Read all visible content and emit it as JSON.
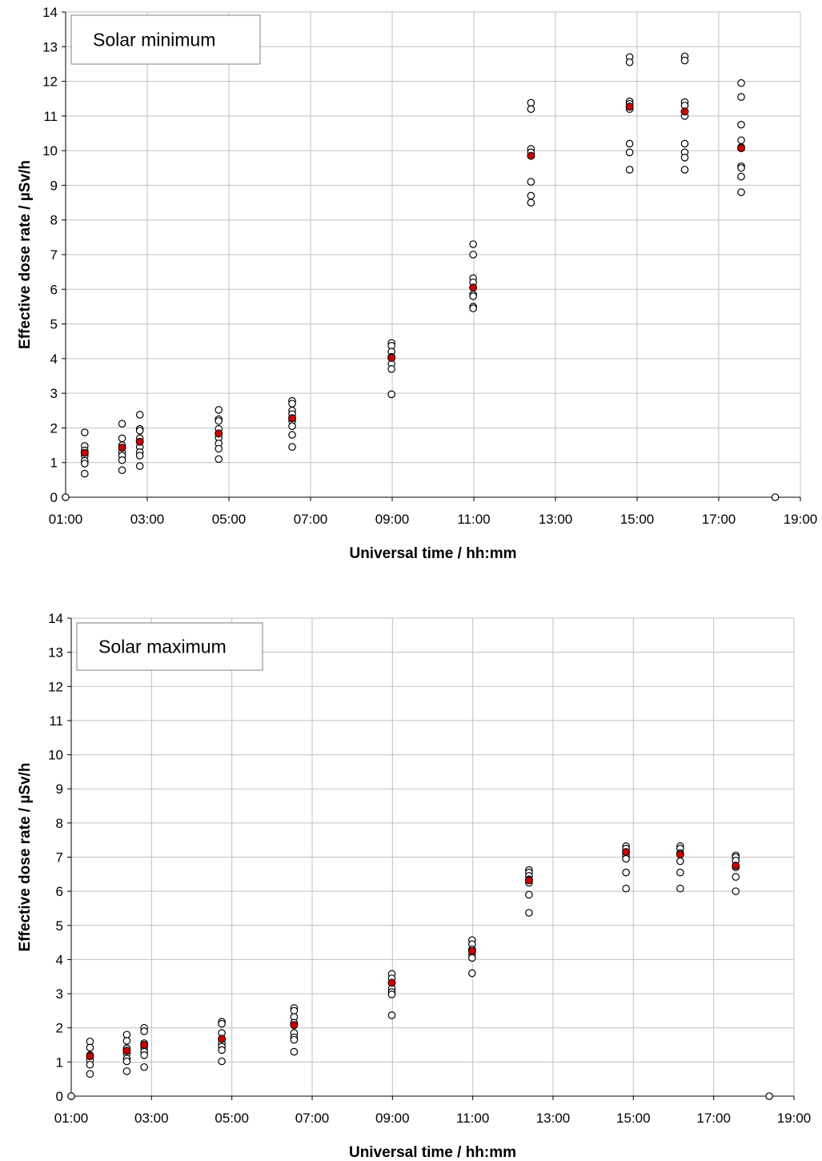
{
  "chart_data": [
    {
      "type": "scatter",
      "panel_label": "Solar minimum",
      "xlabel": "Universal time / hh:mm",
      "ylabel": "Effective dose rate / µSv/h",
      "x_ticks": [
        "01:00",
        "03:00",
        "05:00",
        "07:00",
        "09:00",
        "11:00",
        "13:00",
        "15:00",
        "17:00",
        "19:00"
      ],
      "xlim": [
        "01:00",
        "19:00"
      ],
      "ylim": [
        0,
        14
      ],
      "y_ticks": [
        0,
        1,
        2,
        3,
        4,
        5,
        6,
        7,
        8,
        9,
        10,
        11,
        12,
        13,
        14
      ],
      "grid": true,
      "colors": {
        "individual": "#000000",
        "mean": "#cc0000"
      },
      "series": [
        {
          "marker": "open-circle",
          "points": [
            {
              "x": "01:00",
              "y": 0
            },
            {
              "x": "01:28",
              "y": 1.87
            },
            {
              "x": "01:28",
              "y": 1.48
            },
            {
              "x": "01:28",
              "y": 1.35
            },
            {
              "x": "01:28",
              "y": 1.2
            },
            {
              "x": "01:28",
              "y": 1.05
            },
            {
              "x": "01:28",
              "y": 0.97
            },
            {
              "x": "01:28",
              "y": 0.68
            },
            {
              "x": "02:23",
              "y": 2.12
            },
            {
              "x": "02:23",
              "y": 1.7
            },
            {
              "x": "02:23",
              "y": 1.5
            },
            {
              "x": "02:23",
              "y": 1.3
            },
            {
              "x": "02:23",
              "y": 1.2
            },
            {
              "x": "02:23",
              "y": 1.07
            },
            {
              "x": "02:23",
              "y": 0.78
            },
            {
              "x": "02:49",
              "y": 2.38
            },
            {
              "x": "02:49",
              "y": 1.97
            },
            {
              "x": "02:49",
              "y": 1.92
            },
            {
              "x": "02:49",
              "y": 1.7
            },
            {
              "x": "02:49",
              "y": 1.45
            },
            {
              "x": "02:49",
              "y": 1.3
            },
            {
              "x": "02:49",
              "y": 1.2
            },
            {
              "x": "02:49",
              "y": 0.9
            },
            {
              "x": "04:45",
              "y": 2.52
            },
            {
              "x": "04:45",
              "y": 2.25
            },
            {
              "x": "04:45",
              "y": 2.2
            },
            {
              "x": "04:45",
              "y": 1.97
            },
            {
              "x": "04:45",
              "y": 1.72
            },
            {
              "x": "04:45",
              "y": 1.55
            },
            {
              "x": "04:45",
              "y": 1.4
            },
            {
              "x": "04:45",
              "y": 1.1
            },
            {
              "x": "06:33",
              "y": 2.78
            },
            {
              "x": "06:33",
              "y": 2.7
            },
            {
              "x": "06:33",
              "y": 2.5
            },
            {
              "x": "06:33",
              "y": 2.4
            },
            {
              "x": "06:33",
              "y": 2.2
            },
            {
              "x": "06:33",
              "y": 2.05
            },
            {
              "x": "06:33",
              "y": 1.8
            },
            {
              "x": "06:33",
              "y": 1.45
            },
            {
              "x": "08:59",
              "y": 4.45
            },
            {
              "x": "08:59",
              "y": 4.37
            },
            {
              "x": "08:59",
              "y": 4.2
            },
            {
              "x": "08:59",
              "y": 4.05
            },
            {
              "x": "08:59",
              "y": 3.85
            },
            {
              "x": "08:59",
              "y": 3.7
            },
            {
              "x": "08:59",
              "y": 2.97
            },
            {
              "x": "10:59",
              "y": 7.3
            },
            {
              "x": "10:59",
              "y": 7.0
            },
            {
              "x": "10:59",
              "y": 6.32
            },
            {
              "x": "10:59",
              "y": 6.2
            },
            {
              "x": "10:59",
              "y": 5.85
            },
            {
              "x": "10:59",
              "y": 5.8
            },
            {
              "x": "10:59",
              "y": 5.5
            },
            {
              "x": "10:59",
              "y": 5.45
            },
            {
              "x": "12:24",
              "y": 11.38
            },
            {
              "x": "12:24",
              "y": 11.2
            },
            {
              "x": "12:24",
              "y": 10.05
            },
            {
              "x": "12:24",
              "y": 9.95
            },
            {
              "x": "12:24",
              "y": 9.1
            },
            {
              "x": "12:24",
              "y": 8.7
            },
            {
              "x": "12:24",
              "y": 8.5
            },
            {
              "x": "14:49",
              "y": 12.7
            },
            {
              "x": "14:49",
              "y": 12.55
            },
            {
              "x": "14:49",
              "y": 11.42
            },
            {
              "x": "14:49",
              "y": 11.35
            },
            {
              "x": "14:49",
              "y": 11.2
            },
            {
              "x": "14:49",
              "y": 10.2
            },
            {
              "x": "14:49",
              "y": 9.95
            },
            {
              "x": "14:49",
              "y": 9.45
            },
            {
              "x": "16:10",
              "y": 12.72
            },
            {
              "x": "16:10",
              "y": 12.6
            },
            {
              "x": "16:10",
              "y": 11.4
            },
            {
              "x": "16:10",
              "y": 11.3
            },
            {
              "x": "16:10",
              "y": 11.0
            },
            {
              "x": "16:10",
              "y": 10.2
            },
            {
              "x": "16:10",
              "y": 9.95
            },
            {
              "x": "16:10",
              "y": 9.8
            },
            {
              "x": "16:10",
              "y": 9.45
            },
            {
              "x": "17:33",
              "y": 11.95
            },
            {
              "x": "17:33",
              "y": 11.55
            },
            {
              "x": "17:33",
              "y": 10.75
            },
            {
              "x": "17:33",
              "y": 10.3
            },
            {
              "x": "17:33",
              "y": 10.1
            },
            {
              "x": "17:33",
              "y": 9.55
            },
            {
              "x": "17:33",
              "y": 9.5
            },
            {
              "x": "17:33",
              "y": 9.25
            },
            {
              "x": "17:33",
              "y": 8.8
            },
            {
              "x": "18:23",
              "y": 0
            }
          ]
        },
        {
          "marker": "filled-circle",
          "points": [
            {
              "x": "01:28",
              "y": 1.28
            },
            {
              "x": "02:23",
              "y": 1.43
            },
            {
              "x": "02:49",
              "y": 1.6
            },
            {
              "x": "04:45",
              "y": 1.84
            },
            {
              "x": "06:33",
              "y": 2.28
            },
            {
              "x": "08:59",
              "y": 4.02
            },
            {
              "x": "10:59",
              "y": 6.05
            },
            {
              "x": "12:24",
              "y": 9.85
            },
            {
              "x": "14:49",
              "y": 11.27
            },
            {
              "x": "16:10",
              "y": 11.13
            },
            {
              "x": "17:33",
              "y": 10.07
            }
          ]
        }
      ]
    },
    {
      "type": "scatter",
      "panel_label": "Solar maximum",
      "xlabel": "Universal time / hh:mm",
      "ylabel": "Effective dose rate / µSv/h",
      "x_ticks": [
        "01:00",
        "03:00",
        "05:00",
        "07:00",
        "09:00",
        "11:00",
        "13:00",
        "15:00",
        "17:00",
        "19:00"
      ],
      "xlim": [
        "01:00",
        "19:00"
      ],
      "ylim": [
        0,
        14
      ],
      "y_ticks": [
        0,
        1,
        2,
        3,
        4,
        5,
        6,
        7,
        8,
        9,
        10,
        11,
        12,
        13,
        14
      ],
      "grid": true,
      "colors": {
        "individual": "#000000",
        "mean": "#cc0000"
      },
      "series": [
        {
          "marker": "open-circle",
          "points": [
            {
              "x": "01:00",
              "y": 0
            },
            {
              "x": "01:28",
              "y": 1.6
            },
            {
              "x": "01:28",
              "y": 1.42
            },
            {
              "x": "01:28",
              "y": 1.2
            },
            {
              "x": "01:28",
              "y": 1.05
            },
            {
              "x": "01:28",
              "y": 0.92
            },
            {
              "x": "01:28",
              "y": 0.65
            },
            {
              "x": "02:23",
              "y": 1.8
            },
            {
              "x": "02:23",
              "y": 1.62
            },
            {
              "x": "02:23",
              "y": 1.4
            },
            {
              "x": "02:23",
              "y": 1.25
            },
            {
              "x": "02:23",
              "y": 1.1
            },
            {
              "x": "02:23",
              "y": 1.02
            },
            {
              "x": "02:23",
              "y": 0.73
            },
            {
              "x": "02:49",
              "y": 2.0
            },
            {
              "x": "02:49",
              "y": 1.9
            },
            {
              "x": "02:49",
              "y": 1.55
            },
            {
              "x": "02:49",
              "y": 1.4
            },
            {
              "x": "02:49",
              "y": 1.3
            },
            {
              "x": "02:49",
              "y": 1.2
            },
            {
              "x": "02:49",
              "y": 0.85
            },
            {
              "x": "04:45",
              "y": 2.18
            },
            {
              "x": "04:45",
              "y": 2.12
            },
            {
              "x": "04:45",
              "y": 1.85
            },
            {
              "x": "04:45",
              "y": 1.55
            },
            {
              "x": "04:45",
              "y": 1.45
            },
            {
              "x": "04:45",
              "y": 1.35
            },
            {
              "x": "04:45",
              "y": 1.02
            },
            {
              "x": "06:33",
              "y": 2.58
            },
            {
              "x": "06:33",
              "y": 2.5
            },
            {
              "x": "06:33",
              "y": 2.32
            },
            {
              "x": "06:33",
              "y": 2.15
            },
            {
              "x": "06:33",
              "y": 1.85
            },
            {
              "x": "06:33",
              "y": 1.72
            },
            {
              "x": "06:33",
              "y": 1.65
            },
            {
              "x": "06:33",
              "y": 1.3
            },
            {
              "x": "08:59",
              "y": 3.58
            },
            {
              "x": "08:59",
              "y": 3.45
            },
            {
              "x": "08:59",
              "y": 3.15
            },
            {
              "x": "08:59",
              "y": 3.05
            },
            {
              "x": "08:59",
              "y": 2.98
            },
            {
              "x": "08:59",
              "y": 2.37
            },
            {
              "x": "10:59",
              "y": 4.57
            },
            {
              "x": "10:59",
              "y": 4.45
            },
            {
              "x": "10:59",
              "y": 4.3
            },
            {
              "x": "10:59",
              "y": 4.15
            },
            {
              "x": "10:59",
              "y": 4.05
            },
            {
              "x": "10:59",
              "y": 3.6
            },
            {
              "x": "12:24",
              "y": 6.62
            },
            {
              "x": "12:24",
              "y": 6.55
            },
            {
              "x": "12:24",
              "y": 6.45
            },
            {
              "x": "12:24",
              "y": 6.35
            },
            {
              "x": "12:24",
              "y": 6.25
            },
            {
              "x": "12:24",
              "y": 5.9
            },
            {
              "x": "12:24",
              "y": 5.37
            },
            {
              "x": "14:49",
              "y": 7.32
            },
            {
              "x": "14:49",
              "y": 7.25
            },
            {
              "x": "14:49",
              "y": 7.05
            },
            {
              "x": "14:49",
              "y": 6.95
            },
            {
              "x": "14:49",
              "y": 6.55
            },
            {
              "x": "14:49",
              "y": 6.08
            },
            {
              "x": "16:10",
              "y": 7.32
            },
            {
              "x": "16:10",
              "y": 7.25
            },
            {
              "x": "16:10",
              "y": 7.12
            },
            {
              "x": "16:10",
              "y": 6.88
            },
            {
              "x": "16:10",
              "y": 6.55
            },
            {
              "x": "16:10",
              "y": 6.08
            },
            {
              "x": "17:33",
              "y": 7.05
            },
            {
              "x": "17:33",
              "y": 7.0
            },
            {
              "x": "17:33",
              "y": 6.9
            },
            {
              "x": "17:33",
              "y": 6.7
            },
            {
              "x": "17:33",
              "y": 6.42
            },
            {
              "x": "17:33",
              "y": 6.0
            },
            {
              "x": "18:23",
              "y": 0
            }
          ]
        },
        {
          "marker": "filled-circle",
          "points": [
            {
              "x": "01:28",
              "y": 1.17
            },
            {
              "x": "02:23",
              "y": 1.33
            },
            {
              "x": "02:49",
              "y": 1.5
            },
            {
              "x": "04:45",
              "y": 1.68
            },
            {
              "x": "06:33",
              "y": 2.08
            },
            {
              "x": "08:59",
              "y": 3.32
            },
            {
              "x": "10:59",
              "y": 4.25
            },
            {
              "x": "12:24",
              "y": 6.32
            },
            {
              "x": "14:49",
              "y": 7.15
            },
            {
              "x": "16:10",
              "y": 7.08
            },
            {
              "x": "17:33",
              "y": 6.75
            }
          ]
        }
      ]
    }
  ]
}
